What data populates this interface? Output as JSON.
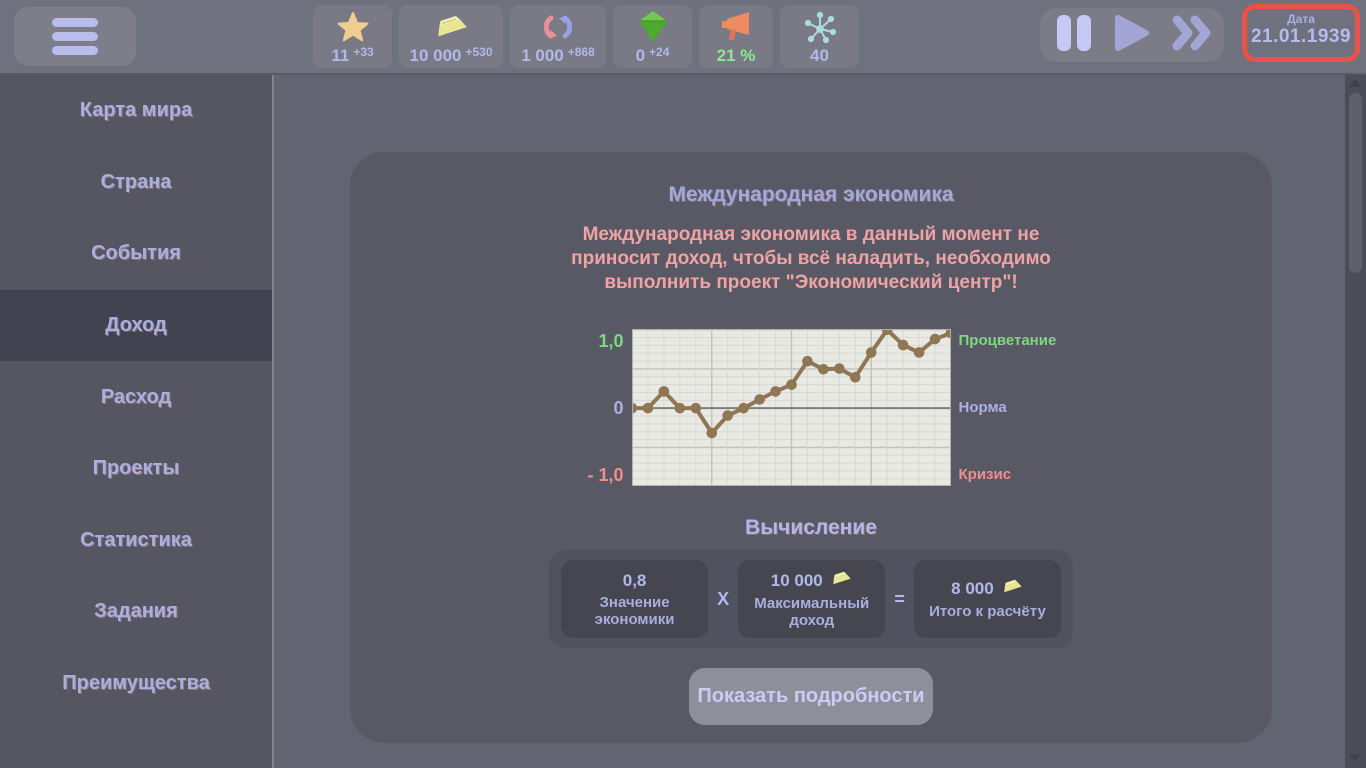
{
  "topbar": {
    "resources": [
      {
        "icon": "star-icon",
        "value": "11",
        "delta": "+33"
      },
      {
        "icon": "gold-bar-icon",
        "value": "10 000",
        "delta": "+530"
      },
      {
        "icon": "cycle-icon",
        "value": "1 000",
        "delta": "+868"
      },
      {
        "icon": "gem-icon",
        "value": "0",
        "delta": "+24"
      },
      {
        "icon": "megaphone-icon",
        "value": "21 %",
        "delta": ""
      },
      {
        "icon": "network-icon",
        "value": "40",
        "delta": ""
      }
    ],
    "date": {
      "label": "Дата",
      "value": "21.01.1939"
    }
  },
  "sidebar": {
    "items": [
      {
        "label": "Карта мира"
      },
      {
        "label": "Страна"
      },
      {
        "label": "События"
      },
      {
        "label": "Доход",
        "active": true
      },
      {
        "label": "Расход"
      },
      {
        "label": "Проекты"
      },
      {
        "label": "Статистика"
      },
      {
        "label": "Задания"
      },
      {
        "label": "Преимущества"
      }
    ]
  },
  "main": {
    "title": "Международная экономика",
    "warning_lines": [
      "Международная экономика в данный момент не",
      "приносит доход, чтобы всё наладить, необходимо",
      "выполнить проект \"Экономический центр\"!"
    ],
    "calc": {
      "heading": "Вычисление",
      "operators": [
        "X",
        "="
      ],
      "items": [
        {
          "value": "0,8",
          "label": "Значение экономики",
          "has_gold_icon": false
        },
        {
          "value": "10 000",
          "label": "Максимальный доход",
          "has_gold_icon": true
        },
        {
          "value": "8 000",
          "label": "Итого к расчёту",
          "has_gold_icon": true
        }
      ]
    },
    "details_button": "Показать подробности"
  },
  "chart_data": {
    "type": "line",
    "x": [
      1,
      2,
      3,
      4,
      5,
      6,
      7,
      8,
      9,
      10,
      11,
      12,
      13,
      14,
      15,
      16,
      17,
      18,
      19,
      20,
      21
    ],
    "values": [
      0,
      0,
      0.25,
      0,
      0,
      -0.37,
      -0.11,
      0,
      0.13,
      0.25,
      0.35,
      0.7,
      0.58,
      0.59,
      0.46,
      0.83,
      1.17,
      0.94,
      0.83,
      1.03,
      1.12
    ],
    "ylim": [
      -1.16,
      1.18
    ],
    "grid": true,
    "line_color": "#8f7655",
    "plot_bg": "#e9e9e4",
    "zero_line_color": "#7e7e7c",
    "yticks": [
      {
        "label": "1,0",
        "value": 1,
        "color": "#7ed87e"
      },
      {
        "label": "0",
        "value": 0,
        "color": "#aab0e2"
      },
      {
        "label": "- 1,0",
        "value": -1,
        "color": "#f08e8e"
      }
    ],
    "right_labels": [
      {
        "text": "Процветание",
        "value": 1,
        "color": "#7ed87e"
      },
      {
        "text": "Норма",
        "value": 0,
        "color": "#aab0e2"
      },
      {
        "text": "Кризис",
        "value": -1,
        "color": "#f08e8e"
      }
    ]
  },
  "colors": {
    "accent_lavender": "#b3b8ea",
    "status_green": "#8de88f",
    "warning_red": "#f0a3a3",
    "date_highlight": "#e7524b"
  }
}
